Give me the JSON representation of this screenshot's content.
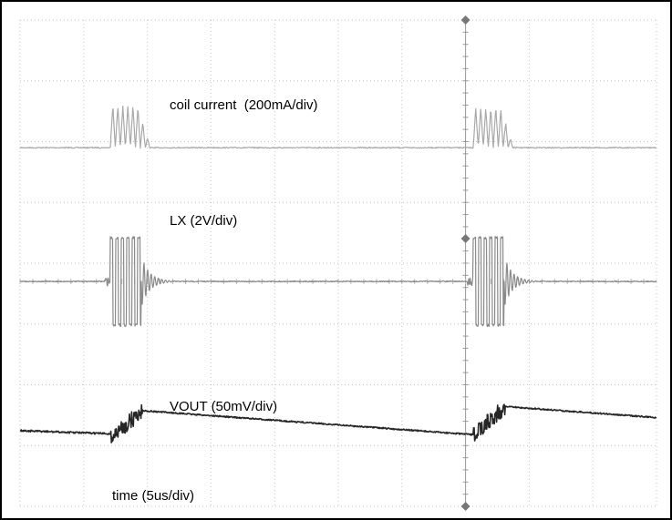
{
  "chart_data": {
    "type": "line",
    "title": "",
    "grid": true,
    "divisions": {
      "x": 10,
      "y": 8
    },
    "trigger_division": 7,
    "series": [
      {
        "name": "coil current  (200mA/div)",
        "color": "#a9a9a9",
        "baseline_div": 2.1,
        "kind": "coil"
      },
      {
        "name": "LX (2V/div)",
        "color": "#8a8a8a",
        "baseline_div": 4.3,
        "kind": "lx"
      },
      {
        "name": "VOUT (50mV/div)",
        "color": "#262626",
        "baseline_div": 6.8,
        "kind": "vout"
      }
    ],
    "annotations": [
      {
        "text": "time (5us/div)"
      }
    ]
  }
}
